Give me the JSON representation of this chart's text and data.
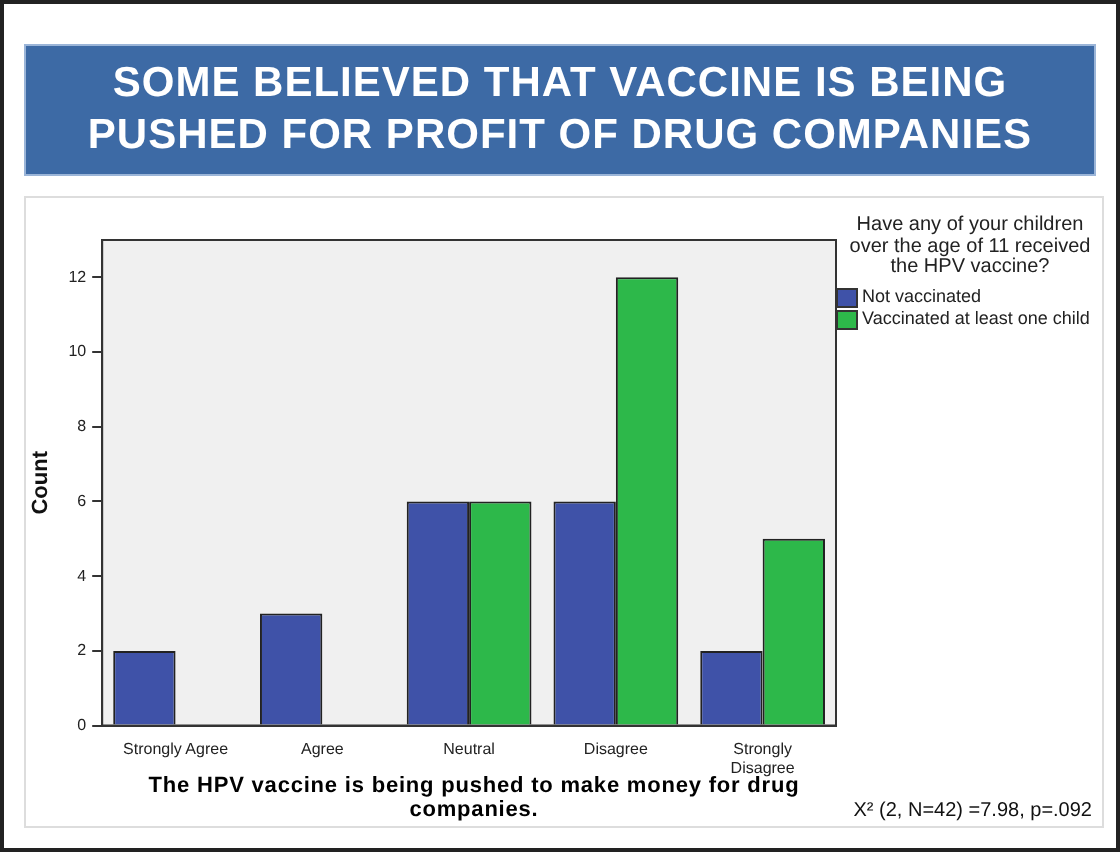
{
  "chart_data": {
    "type": "bar",
    "title": "SOME BELIEVED THAT VACCINE IS BEING PUSHED FOR PROFIT OF DRUG COMPANIES",
    "xlabel": "The HPV vaccine is being pushed to make money for drug companies.",
    "ylabel": "Count",
    "legend_title": "Have any of your children over the age of 11 received the HPV vaccine?",
    "categories": [
      "Strongly Agree",
      "Agree",
      "Neutral",
      "Disagree",
      "Strongly Disagree"
    ],
    "series": [
      {
        "name": "Not vaccinated",
        "color": "#3f52a8",
        "values": [
          2,
          3,
          6,
          6,
          2
        ]
      },
      {
        "name": "Vaccinated at least one child",
        "color": "#2db84a",
        "values": [
          0,
          0,
          6,
          12,
          5
        ]
      }
    ],
    "ylim": [
      0,
      13
    ],
    "yticks": [
      0,
      2,
      4,
      6,
      8,
      10,
      12
    ],
    "grid": false,
    "legend": "right",
    "annotations": [
      "X² (2, N=42) =7.98, p=.092"
    ]
  }
}
